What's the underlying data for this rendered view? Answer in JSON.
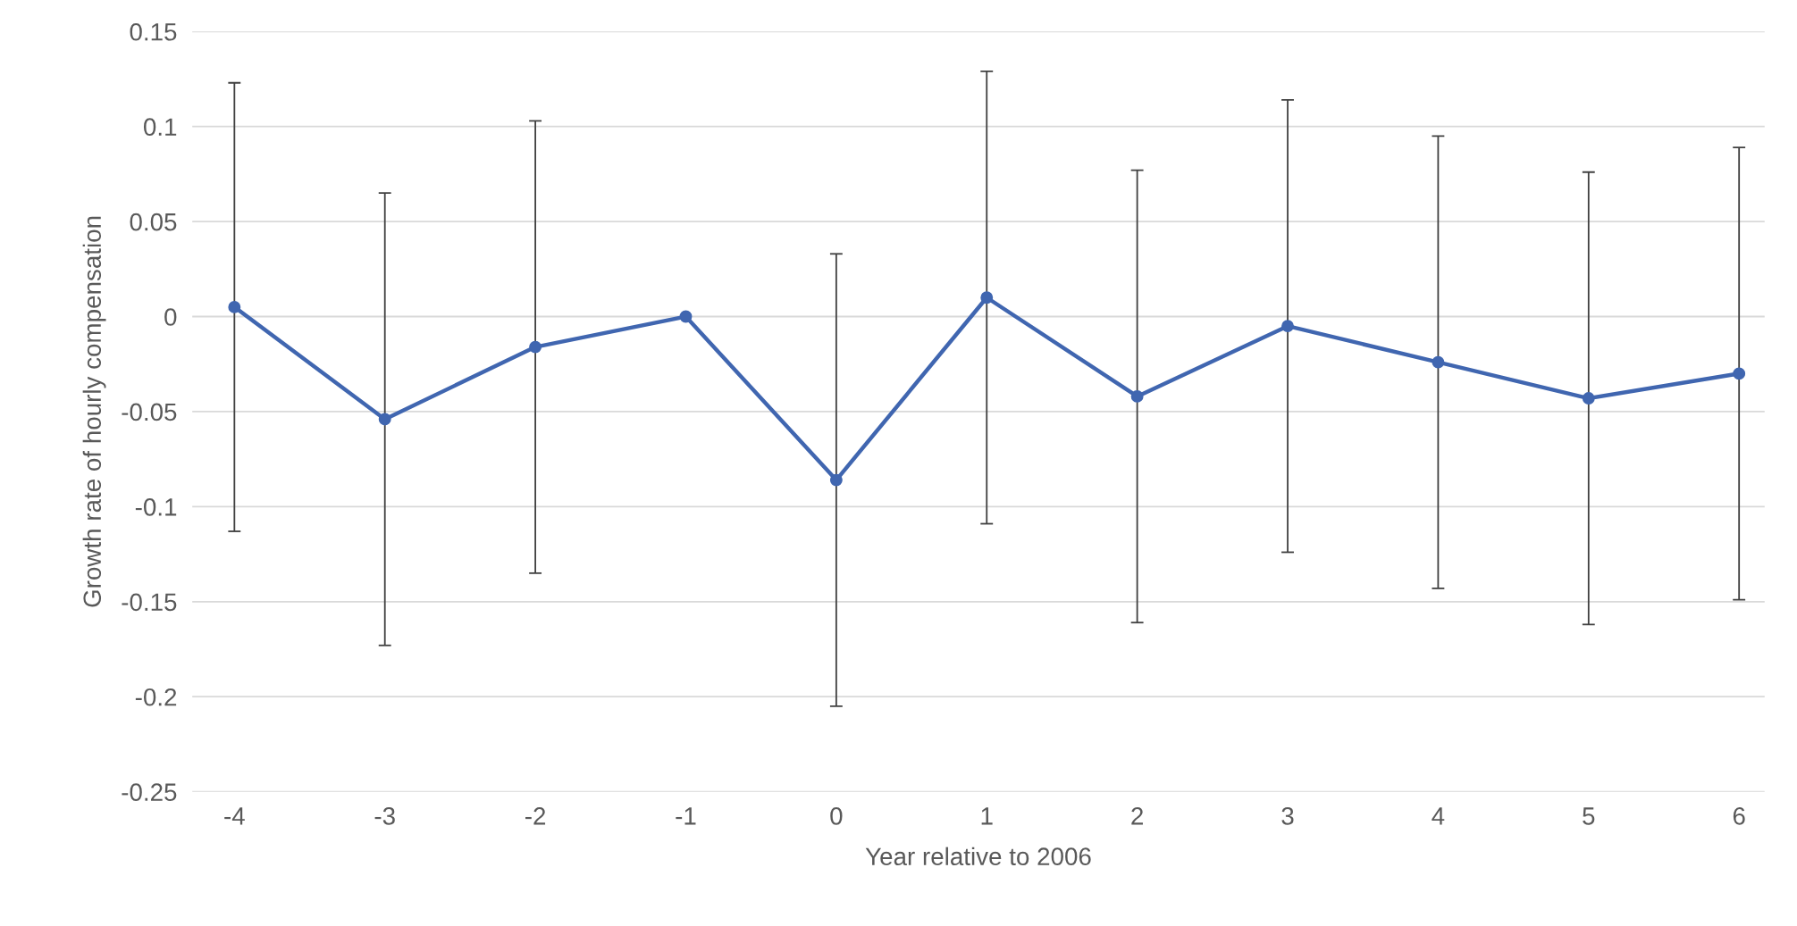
{
  "chart_data": {
    "type": "line",
    "xlabel": "Year relative to 2006",
    "ylabel": "Growth rate of hourly compensation",
    "categories": [
      "-4",
      "-3",
      "-2",
      "-1",
      "0",
      "1",
      "2",
      "3",
      "4",
      "5",
      "6"
    ],
    "series": [
      {
        "color": "#4066b0",
        "values": [
          0.005,
          -0.054,
          -0.016,
          0.0,
          -0.086,
          0.01,
          -0.042,
          -0.005,
          -0.024,
          -0.043,
          -0.03
        ],
        "errors": [
          0.118,
          0.119,
          0.119,
          null,
          0.119,
          0.119,
          0.119,
          0.119,
          0.119,
          0.119,
          0.119
        ]
      }
    ],
    "ylim": [
      -0.25,
      0.15
    ],
    "yticks": [
      -0.25,
      -0.2,
      -0.15,
      -0.1,
      -0.05,
      0,
      0.05,
      0.1,
      0.15
    ],
    "grid": "y",
    "marker": "circle",
    "line_style": "solid"
  }
}
